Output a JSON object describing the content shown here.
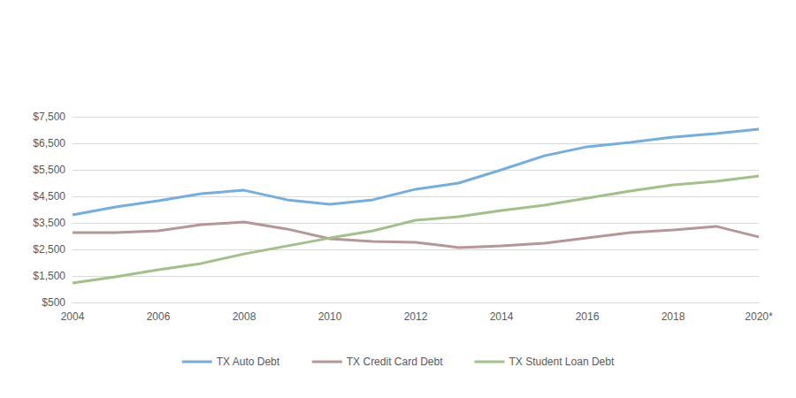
{
  "chart_data": {
    "type": "line",
    "categories": [
      "2004",
      null,
      "2006",
      null,
      "2008",
      null,
      "2010",
      null,
      "2012",
      null,
      "2014",
      null,
      "2016",
      null,
      "2018",
      null,
      "2020*"
    ],
    "series": [
      {
        "name": "TX Auto Debt",
        "color": "#74aedb",
        "values": [
          3800,
          4100,
          4330,
          4600,
          4730,
          4370,
          4200,
          4370,
          4770,
          5000,
          5500,
          6030,
          6370,
          6530,
          6730,
          6870,
          7030
        ]
      },
      {
        "name": "TX Credit Card Debt",
        "color": "#b59799",
        "values": [
          3130,
          3130,
          3200,
          3430,
          3530,
          3270,
          2900,
          2800,
          2770,
          2570,
          2630,
          2730,
          2930,
          3130,
          3230,
          3370,
          2970
        ]
      },
      {
        "name": "TX Student Loan Debt",
        "color": "#a3c08a",
        "values": [
          1230,
          1470,
          1730,
          1970,
          2330,
          2630,
          2930,
          3200,
          3600,
          3730,
          3970,
          4170,
          4430,
          4700,
          4930,
          5070,
          5270
        ]
      }
    ],
    "ylim": [
      500,
      7500
    ],
    "yticks": [
      {
        "value": 500,
        "label": "$500"
      },
      {
        "value": 1500,
        "label": "$1,500"
      },
      {
        "value": 2500,
        "label": "$2,500"
      },
      {
        "value": 3500,
        "label": "$3,500"
      },
      {
        "value": 4500,
        "label": "$4,500"
      },
      {
        "value": 5500,
        "label": "$5,500"
      },
      {
        "value": 6500,
        "label": "$6,500"
      },
      {
        "value": 7500,
        "label": "$7,500"
      }
    ],
    "grid": true,
    "legend": "bottom"
  }
}
